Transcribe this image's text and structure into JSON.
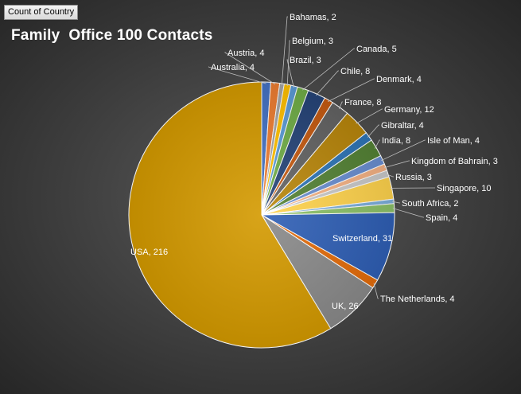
{
  "pivot_field_button": "Count of Country",
  "chart_data": {
    "type": "pie",
    "title": "Family  Office 100 Contacts",
    "slices": [
      {
        "label": "Australia",
        "value": 4,
        "display": "Australia, 4",
        "color": "#4472c4"
      },
      {
        "label": "Austria",
        "value": 4,
        "display": "Austria, 4",
        "color": "#ed7d31"
      },
      {
        "label": "Bahamas",
        "value": 2,
        "display": "Bahamas, 2",
        "color": "#a5a5a5"
      },
      {
        "label": "Belgium",
        "value": 3,
        "display": "Belgium, 3",
        "color": "#ffc000"
      },
      {
        "label": "Brazil",
        "value": 3,
        "display": "Brazil, 3",
        "color": "#5b9bd5"
      },
      {
        "label": "Canada",
        "value": 5,
        "display": "Canada, 5",
        "color": "#70ad47"
      },
      {
        "label": "Chile",
        "value": 8,
        "display": "Chile, 8",
        "color": "#264478"
      },
      {
        "label": "Denmark",
        "value": 4,
        "display": "Denmark, 4",
        "color": "#c55a11"
      },
      {
        "label": "France",
        "value": 8,
        "display": "France, 8",
        "color": "#636363"
      },
      {
        "label": "Germany",
        "value": 12,
        "display": "Germany, 12",
        "color": "#b8860b"
      },
      {
        "label": "Gibraltar",
        "value": 4,
        "display": "Gibraltar, 4",
        "color": "#2e75b6"
      },
      {
        "label": "India",
        "value": 8,
        "display": "India, 8",
        "color": "#548235"
      },
      {
        "label": "Isle of Man",
        "value": 4,
        "display": "Isle of Man, 4",
        "color": "#698ed0"
      },
      {
        "label": "Kingdom of Bahrain",
        "value": 3,
        "display": "Kingdom of Bahrain, 3",
        "color": "#f4b183"
      },
      {
        "label": "Russia",
        "value": 3,
        "display": "Russia, 3",
        "color": "#c9c9c9"
      },
      {
        "label": "Singapore",
        "value": 10,
        "display": "Singapore, 10",
        "color": "#ffd34d"
      },
      {
        "label": "South Africa",
        "value": 2,
        "display": "South Africa, 2",
        "color": "#7cafdd"
      },
      {
        "label": "Spain",
        "value": 4,
        "display": "Spain, 4",
        "color": "#8cc168"
      },
      {
        "label": "Switzerland",
        "value": 31,
        "display": "Switzerland, 31",
        "color": "#2f5fb5"
      },
      {
        "label": "The Netherlands",
        "value": 4,
        "display": "The Netherlands, 4",
        "color": "#e46c0a"
      },
      {
        "label": "UK",
        "value": 26,
        "display": "UK, 26",
        "color": "#8a8a8a"
      },
      {
        "label": "USA",
        "value": 216,
        "display": "USA, 216",
        "color": "#d49a00"
      }
    ],
    "legend": "none",
    "data_labels": "category, value"
  }
}
